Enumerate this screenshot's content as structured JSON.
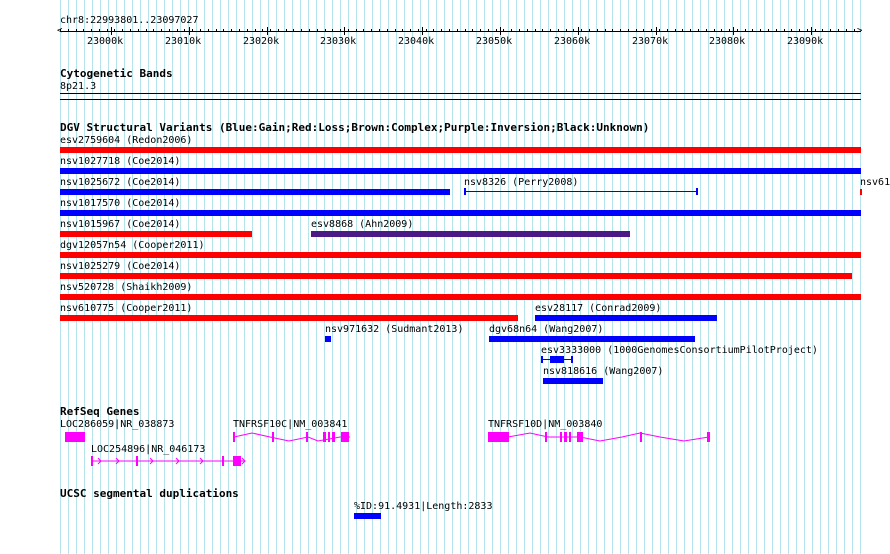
{
  "ruler": {
    "position": "chr8:22993801..23097027",
    "ticks": [
      "23000k",
      "23010k",
      "23020k",
      "23030k",
      "23040k",
      "23050k",
      "23060k",
      "23070k",
      "23080k",
      "23090k"
    ]
  },
  "cyto": {
    "title": "Cytogenetic Bands",
    "band": "8p21.3"
  },
  "dgv": {
    "title": "DGV Structural Variants (Blue:Gain;Red:Loss;Brown:Complex;Purple:Inversion;Black:Unknown)",
    "colors": {
      "gain": "#0000ff",
      "loss": "#ff0000",
      "inversion": "#4b1a86"
    },
    "variants": [
      {
        "label": "esv2759604 (Redon2006)",
        "type": "loss"
      },
      {
        "label": "nsv1027718 (Coe2014)",
        "type": "gain"
      },
      {
        "label": "nsv1025672 (Coe2014)",
        "type": "gain"
      },
      {
        "label": "nsv8326 (Perry2008)",
        "type": "gain"
      },
      {
        "label": "nsv61",
        "type": "loss"
      },
      {
        "label": "nsv1017570 (Coe2014)",
        "type": "gain"
      },
      {
        "label": "nsv1015967 (Coe2014)",
        "type": "loss"
      },
      {
        "label": "esv8868 (Ahn2009)",
        "type": "inversion"
      },
      {
        "label": "dgv12057n54 (Cooper2011)",
        "type": "loss"
      },
      {
        "label": "nsv1025279 (Coe2014)",
        "type": "loss"
      },
      {
        "label": "nsv520728 (Shaikh2009)",
        "type": "loss"
      },
      {
        "label": "nsv610775 (Cooper2011)",
        "type": "loss"
      },
      {
        "label": "esv28117 (Conrad2009)",
        "type": "gain"
      },
      {
        "label": "nsv971632 (Sudmant2013)",
        "type": "gain"
      },
      {
        "label": "dgv68n64 (Wang2007)",
        "type": "gain"
      },
      {
        "label": "esv3333000 (1000GenomesConsortiumPilotProject)",
        "type": "gain"
      },
      {
        "label": "nsv818616 (Wang2007)",
        "type": "gain"
      }
    ]
  },
  "refseq": {
    "title": "RefSeq Genes",
    "color": "#ff00ff",
    "genes": [
      {
        "label": "LOC286059|NR_038873"
      },
      {
        "label": "LOC254896|NR_046173"
      },
      {
        "label": "TNFRSF10C|NM_003841"
      },
      {
        "label": "TNFRSF10D|NM_003840"
      }
    ]
  },
  "segdup": {
    "title": "UCSC segmental duplications",
    "items": [
      {
        "label": "%ID:91.4931|Length:2833"
      }
    ]
  }
}
